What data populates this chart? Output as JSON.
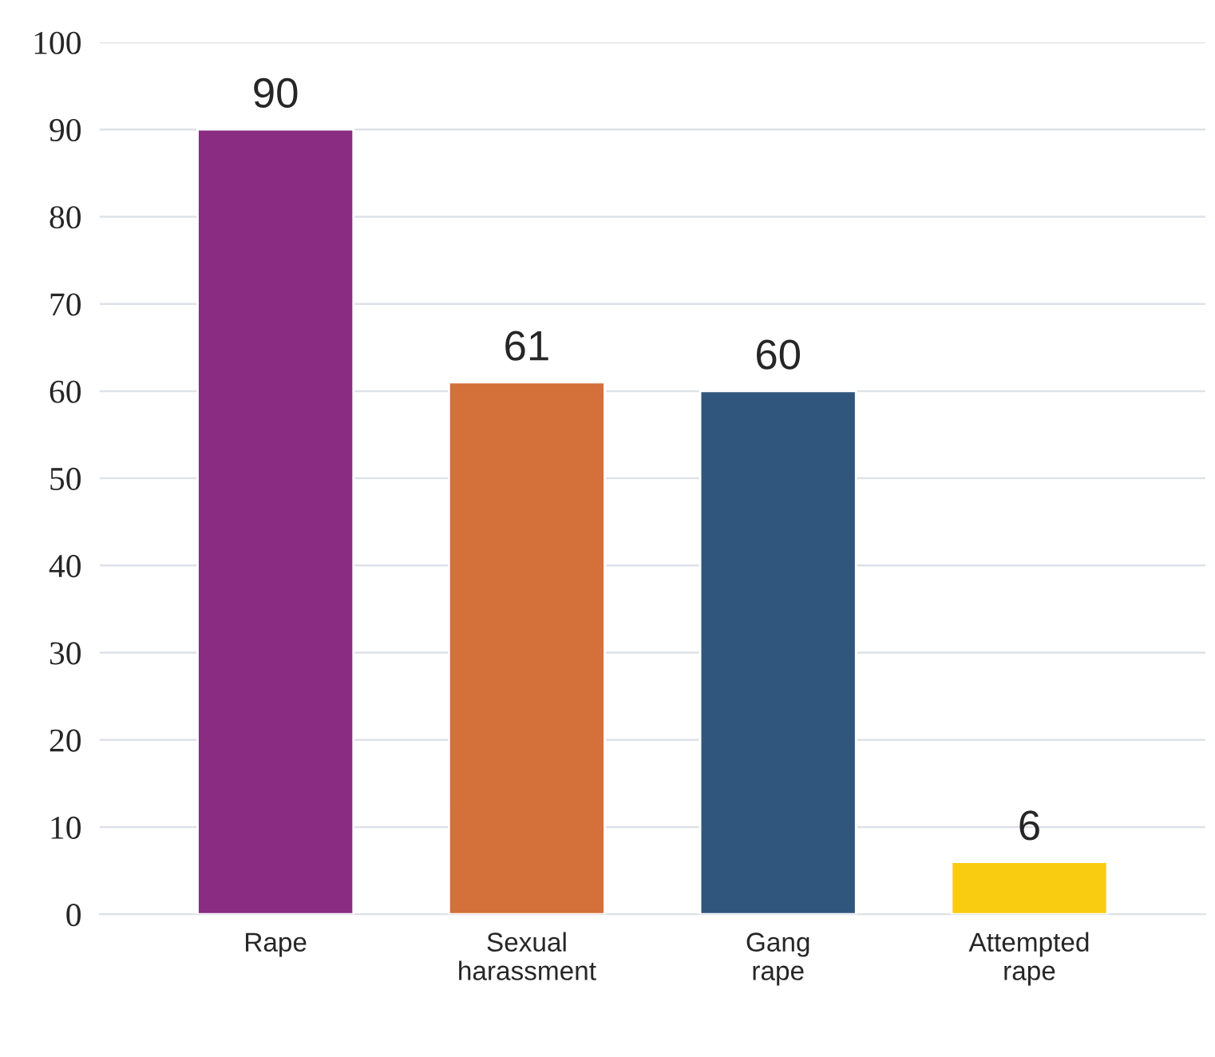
{
  "chart_data": {
    "type": "bar",
    "categories": [
      "Rape",
      "Sexual harassment",
      "Gang rape",
      "Attempted rape"
    ],
    "values": [
      90,
      61,
      60,
      6
    ],
    "colors": [
      "#8a2c82",
      "#d4703a",
      "#30567e",
      "#f9cc12"
    ],
    "ylim": [
      0,
      100
    ],
    "yticks": [
      0,
      10,
      20,
      30,
      40,
      50,
      60,
      70,
      80,
      90,
      100
    ],
    "grid": "y",
    "data_labels": true
  }
}
